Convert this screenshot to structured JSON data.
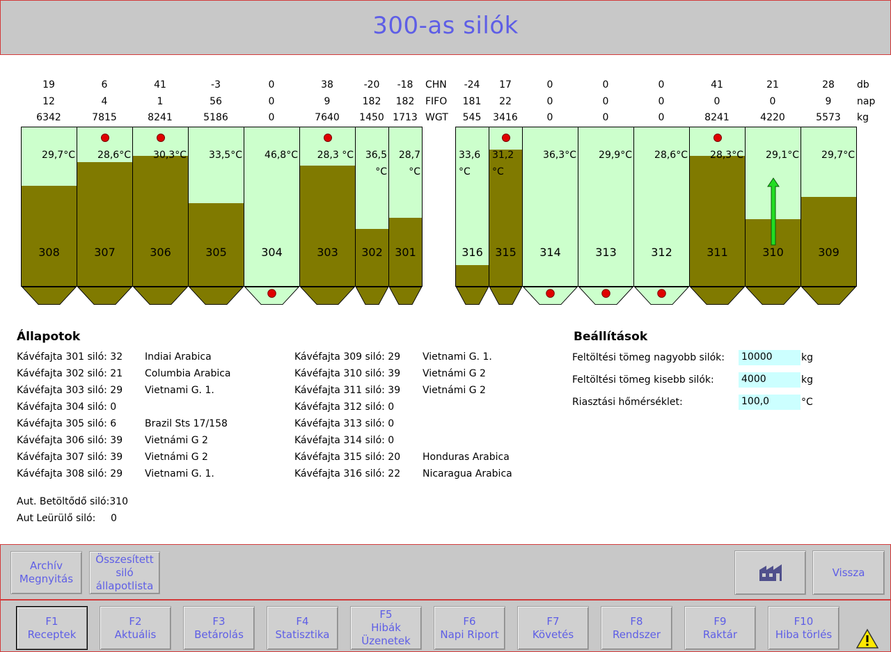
{
  "title": "300-as silók",
  "row_labels": {
    "chn": "CHN",
    "fifo": "FIFO",
    "wgt": "WGT",
    "db": "db",
    "nap": "nap",
    "kg": "kg"
  },
  "left_silos": [
    {
      "id": "308",
      "chn": "19",
      "fifo": "12",
      "wgt": "6342",
      "temp": "29,7°C",
      "fill": 0.63,
      "dot_top": false,
      "dot_bottom": false
    },
    {
      "id": "307",
      "chn": "6",
      "fifo": "4",
      "wgt": "7815",
      "temp": "28,6°C",
      "fill": 0.78,
      "dot_top": true,
      "dot_bottom": false
    },
    {
      "id": "306",
      "chn": "41",
      "fifo": "1",
      "wgt": "8241",
      "temp": "30,3°C",
      "fill": 0.82,
      "dot_top": true,
      "dot_bottom": false
    },
    {
      "id": "305",
      "chn": "-3",
      "fifo": "56",
      "wgt": "5186",
      "temp": "33,5°C",
      "fill": 0.52,
      "dot_top": false,
      "dot_bottom": false
    },
    {
      "id": "304",
      "chn": "0",
      "fifo": "0",
      "wgt": "0",
      "temp": "46,8°C",
      "fill": 0.0,
      "dot_top": false,
      "dot_bottom": true
    },
    {
      "id": "303",
      "chn": "38",
      "fifo": "9",
      "wgt": "7640",
      "temp": "28,3 °C",
      "fill": 0.76,
      "dot_top": true,
      "dot_bottom": false
    },
    {
      "id": "302",
      "chn": "-20",
      "fifo": "182",
      "wgt": "1450",
      "temp": "36,5 °C",
      "fill": 0.36,
      "dot_top": false,
      "dot_bottom": false
    },
    {
      "id": "301",
      "chn": "-18",
      "fifo": "182",
      "wgt": "1713",
      "temp": "28,7 °C",
      "fill": 0.43,
      "dot_top": false,
      "dot_bottom": false
    }
  ],
  "right_silos": [
    {
      "id": "316",
      "chn": "-24",
      "fifo": "181",
      "wgt": "545",
      "temp": "33,6 °C",
      "fill": 0.13,
      "dot_top": false,
      "dot_bottom": false
    },
    {
      "id": "315",
      "chn": "17",
      "fifo": "22",
      "wgt": "3416",
      "temp": "31,2 °C",
      "fill": 0.86,
      "dot_top": true,
      "dot_bottom": false
    },
    {
      "id": "314",
      "chn": "0",
      "fifo": "0",
      "wgt": "0",
      "temp": "36,3°C",
      "fill": 0.0,
      "dot_top": false,
      "dot_bottom": true
    },
    {
      "id": "313",
      "chn": "0",
      "fifo": "0",
      "wgt": "0",
      "temp": "29,9°C",
      "fill": 0.0,
      "dot_top": false,
      "dot_bottom": true
    },
    {
      "id": "312",
      "chn": "0",
      "fifo": "0",
      "wgt": "0",
      "temp": "28,6°C",
      "fill": 0.0,
      "dot_top": false,
      "dot_bottom": true
    },
    {
      "id": "311",
      "chn": "41",
      "fifo": "0",
      "wgt": "8241",
      "temp": "28,3°C",
      "fill": 0.82,
      "dot_top": true,
      "dot_bottom": false
    },
    {
      "id": "310",
      "chn": "21",
      "fifo": "0",
      "wgt": "4220",
      "temp": "29,1°C",
      "fill": 0.42,
      "dot_top": false,
      "dot_bottom": false,
      "arrow": true
    },
    {
      "id": "309",
      "chn": "28",
      "fifo": "9",
      "wgt": "5573",
      "temp": "29,7°C",
      "fill": 0.56,
      "dot_top": false,
      "dot_bottom": false
    }
  ],
  "status": {
    "heading": "Állapotok",
    "col1": [
      {
        "label": "Kávéfajta 301 siló: 32",
        "name": "Indiai Arabica"
      },
      {
        "label": "Kávéfajta 302 siló: 21",
        "name": "Columbia Arabica"
      },
      {
        "label": "Kávéfajta 303 siló: 29",
        "name": "Vietnami G. 1."
      },
      {
        "label": "Kávéfajta 304 siló: 0",
        "name": ""
      },
      {
        "label": "Kávéfajta 305 siló: 6",
        "name": "Brazil Sts 17/158"
      },
      {
        "label": "Kávéfajta 306 siló: 39",
        "name": "Vietnámi G 2"
      },
      {
        "label": "Kávéfajta 307 siló: 39",
        "name": "Vietnámi G 2"
      },
      {
        "label": "Kávéfajta 308 siló: 29",
        "name": "Vietnami G. 1."
      }
    ],
    "col2": [
      {
        "label": "Kávéfajta 309 siló: 29",
        "name": "Vietnami G. 1."
      },
      {
        "label": "Kávéfajta 310 siló: 39",
        "name": "Vietnámi G 2"
      },
      {
        "label": "Kávéfajta 311 siló: 39",
        "name": "Vietnámi G 2"
      },
      {
        "label": "Kávéfajta 312 siló: 0",
        "name": ""
      },
      {
        "label": "Kávéfajta 313 siló: 0",
        "name": ""
      },
      {
        "label": "Kávéfajta 314 siló: 0",
        "name": ""
      },
      {
        "label": "Kávéfajta 315 siló: 20",
        "name": "Honduras Arabica"
      },
      {
        "label": "Kávéfajta 316 siló: 22",
        "name": "Nicaragua Arabica"
      }
    ],
    "auto_fill_label": "Aut. Betöltődő siló:310",
    "auto_empty_label": "Aut Leürülő siló:",
    "auto_empty_value": "0"
  },
  "settings": {
    "heading": "Beállítások",
    "big_label": "Feltöltési tömeg nagyobb silók:",
    "big_value": "10000",
    "big_unit": "kg",
    "small_label": "Feltöltési tömeg kisebb silók:",
    "small_value": "4000",
    "small_unit": "kg",
    "alarm_label": "Riasztási hőmérséklet:",
    "alarm_value": "100,0",
    "alarm_unit": "°C"
  },
  "action_bar": {
    "archive": "Archív Megnyitás",
    "summary": "Összesített siló állapotlista",
    "home_icon": "factory-icon",
    "back": "Vissza"
  },
  "fkeys": [
    {
      "key": "F1",
      "label": "Receptek"
    },
    {
      "key": "F2",
      "label": "Aktuális"
    },
    {
      "key": "F3",
      "label": "Betárolás"
    },
    {
      "key": "F4",
      "label": "Statisztika"
    },
    {
      "key": "F5",
      "label": "Hibák Üzenetek"
    },
    {
      "key": "F6",
      "label": "Napi Riport"
    },
    {
      "key": "F7",
      "label": "Követés"
    },
    {
      "key": "F8",
      "label": "Rendszer"
    },
    {
      "key": "F9",
      "label": "Raktár"
    },
    {
      "key": "F10",
      "label": "Hiba törlés"
    }
  ],
  "colors": {
    "accent": "#5e5ee6",
    "empty": "#ccffcc",
    "fill": "#807a00",
    "alarm": "#e00000",
    "border": "#d23a3a"
  }
}
